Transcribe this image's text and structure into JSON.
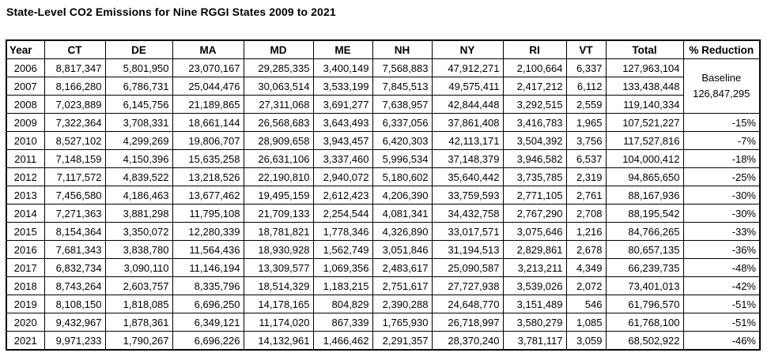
{
  "page": {
    "title": "State-Level CO2 Emissions for Nine RGGI States 2009 to 2021"
  },
  "chart_data": {
    "type": "table",
    "title": "State-Level CO2 Emissions for Nine RGGI States 2009 to 2021",
    "columns": [
      "Year",
      "CT",
      "DE",
      "MA",
      "MD",
      "ME",
      "NH",
      "NY",
      "RI",
      "VT",
      "Total",
      "% Reduction"
    ],
    "baseline": {
      "label": "Baseline",
      "value": "126,847,295"
    },
    "rows": [
      {
        "year": "2006",
        "values": [
          "8,817,347",
          "5,801,950",
          "23,070,167",
          "29,285,335",
          "3,400,149",
          "7,568,883",
          "47,912,271",
          "2,100,664",
          "6,337",
          "127,963,104"
        ],
        "reduction": null
      },
      {
        "year": "2007",
        "values": [
          "8,166,280",
          "6,786,731",
          "25,044,476",
          "30,063,514",
          "3,533,199",
          "7,845,513",
          "49,575,411",
          "2,417,212",
          "6,112",
          "133,438,448"
        ],
        "reduction": null
      },
      {
        "year": "2008",
        "values": [
          "7,023,889",
          "6,145,756",
          "21,189,865",
          "27,311,068",
          "3,691,277",
          "7,638,957",
          "42,844,448",
          "3,292,515",
          "2,559",
          "119,140,334"
        ],
        "reduction": null
      },
      {
        "year": "2009",
        "values": [
          "7,322,364",
          "3,708,331",
          "18,661,144",
          "26,568,683",
          "3,643,493",
          "6,337,056",
          "37,861,408",
          "3,416,783",
          "1,965",
          "107,521,227"
        ],
        "reduction": "-15%"
      },
      {
        "year": "2010",
        "values": [
          "8,527,102",
          "4,299,269",
          "19,806,707",
          "28,909,658",
          "3,943,457",
          "6,420,303",
          "42,113,171",
          "3,504,392",
          "3,756",
          "117,527,816"
        ],
        "reduction": "-7%"
      },
      {
        "year": "2011",
        "values": [
          "7,148,159",
          "4,150,396",
          "15,635,258",
          "26,631,106",
          "3,337,460",
          "5,996,534",
          "37,148,379",
          "3,946,582",
          "6,537",
          "104,000,412"
        ],
        "reduction": "-18%"
      },
      {
        "year": "2012",
        "values": [
          "7,117,572",
          "4,839,522",
          "13,218,526",
          "22,190,810",
          "2,940,072",
          "5,180,602",
          "35,640,442",
          "3,735,785",
          "2,319",
          "94,865,650"
        ],
        "reduction": "-25%"
      },
      {
        "year": "2013",
        "values": [
          "7,456,580",
          "4,186,463",
          "13,677,462",
          "19,495,159",
          "2,612,423",
          "4,206,390",
          "33,759,593",
          "2,771,105",
          "2,761",
          "88,167,936"
        ],
        "reduction": "-30%"
      },
      {
        "year": "2014",
        "values": [
          "7,271,363",
          "3,881,298",
          "11,795,108",
          "21,709,133",
          "2,254,544",
          "4,081,341",
          "34,432,758",
          "2,767,290",
          "2,708",
          "88,195,542"
        ],
        "reduction": "-30%"
      },
      {
        "year": "2015",
        "values": [
          "8,154,364",
          "3,350,072",
          "12,280,339",
          "18,781,821",
          "1,778,346",
          "4,326,890",
          "33,017,571",
          "3,075,646",
          "1,216",
          "84,766,265"
        ],
        "reduction": "-33%"
      },
      {
        "year": "2016",
        "values": [
          "7,681,343",
          "3,838,780",
          "11,564,436",
          "18,930,928",
          "1,562,749",
          "3,051,846",
          "31,194,513",
          "2,829,861",
          "2,678",
          "80,657,135"
        ],
        "reduction": "-36%"
      },
      {
        "year": "2017",
        "values": [
          "6,832,734",
          "3,090,110",
          "11,146,194",
          "13,309,577",
          "1,069,356",
          "2,483,617",
          "25,090,587",
          "3,213,211",
          "4,349",
          "66,239,735"
        ],
        "reduction": "-48%"
      },
      {
        "year": "2018",
        "values": [
          "8,743,264",
          "2,603,757",
          "8,335,796",
          "18,514,329",
          "1,183,215",
          "2,751,617",
          "27,727,938",
          "3,539,026",
          "2,072",
          "73,401,013"
        ],
        "reduction": "-42%"
      },
      {
        "year": "2019",
        "values": [
          "8,108,150",
          "1,818,085",
          "6,696,250",
          "14,178,165",
          "804,829",
          "2,390,288",
          "24,648,770",
          "3,151,489",
          "546",
          "61,796,570"
        ],
        "reduction": "-51%"
      },
      {
        "year": "2020",
        "values": [
          "9,432,967",
          "1,878,361",
          "6,349,121",
          "11,174,020",
          "867,339",
          "1,765,930",
          "26,718,997",
          "3,580,279",
          "1,085",
          "61,768,100"
        ],
        "reduction": "-51%"
      },
      {
        "year": "2021",
        "values": [
          "9,971,233",
          "1,790,267",
          "6,696,226",
          "14,132,961",
          "1,466,462",
          "2,291,357",
          "28,370,240",
          "3,781,117",
          "3,059",
          "68,502,922"
        ],
        "reduction": "-46%"
      }
    ]
  }
}
